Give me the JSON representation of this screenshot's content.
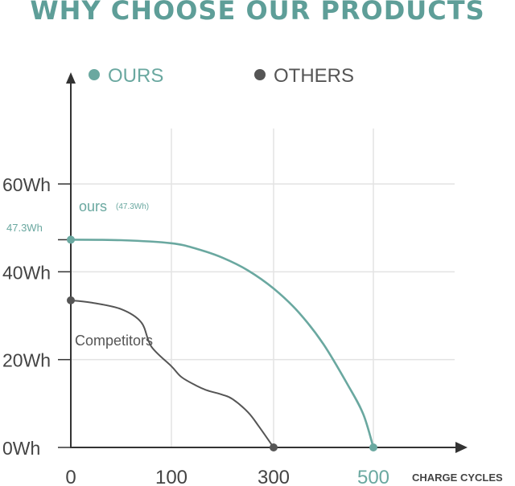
{
  "title": "WHY CHOOSE OUR PRODUCTS",
  "legend": {
    "ours": "OURS",
    "others": "OTHERS"
  },
  "annotations": {
    "ours_label": "ours",
    "ours_value": "(47.3Wh)",
    "start_value_label": "47.3Wh",
    "competitors_label": "Competitors"
  },
  "colors": {
    "ours": "#6aa8a0",
    "others": "#555555",
    "title": "#5e9e98",
    "grid": "#e3e3e3",
    "axis": "#333333"
  },
  "chart_data": {
    "type": "line",
    "title": "WHY CHOOSE OUR PRODUCTS",
    "xlabel": "CHARGE CYCLES",
    "ylabel": "",
    "x_ticks": [
      0,
      100,
      300,
      500
    ],
    "x_tick_labels": [
      "0",
      "100",
      "300",
      "500"
    ],
    "y_ticks": [
      0,
      20,
      40,
      60
    ],
    "y_tick_labels": [
      "0Wh",
      "20Wh",
      "40Wh",
      "60Wh"
    ],
    "xlim": [
      0,
      500
    ],
    "ylim": [
      0,
      60
    ],
    "grid": true,
    "legend_position": "top",
    "series": [
      {
        "name": "OURS",
        "x": [
          0,
          50,
          100,
          150,
          200,
          250,
          300,
          350,
          400,
          450,
          480,
          500
        ],
        "y": [
          47.3,
          47.2,
          46.5,
          45.2,
          43.2,
          40.3,
          36.2,
          30.8,
          23.5,
          14.0,
          7.5,
          0
        ]
      },
      {
        "name": "OTHERS",
        "x": [
          0,
          20,
          50,
          70,
          80,
          100,
          120,
          150,
          170,
          200,
          220,
          250,
          270,
          300
        ],
        "y": [
          33.5,
          33.0,
          31.5,
          28.5,
          23.0,
          18.5,
          16.0,
          14.0,
          13.0,
          12.0,
          11.0,
          8.0,
          5.0,
          0
        ]
      }
    ]
  }
}
